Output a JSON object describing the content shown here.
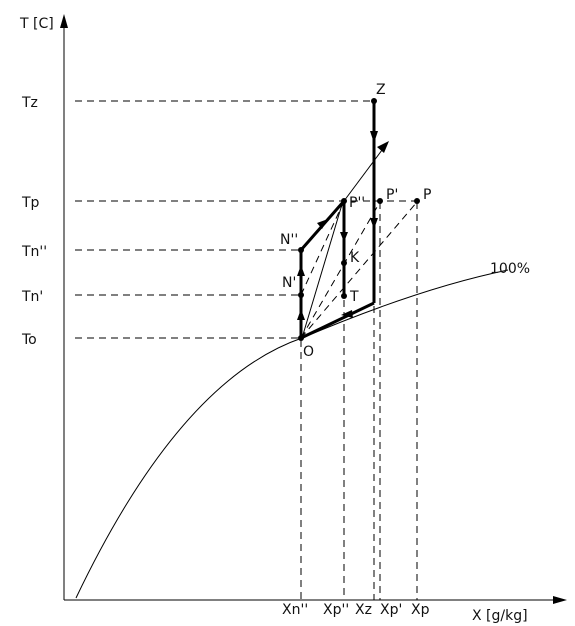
{
  "axes": {
    "y_label": "T [C]",
    "x_label": "X [g/kg]"
  },
  "y_ticks": {
    "tz": "Tz",
    "tp": "Tp",
    "tn2": "Tn''",
    "tn1": "Tn'",
    "to": "To"
  },
  "x_ticks": {
    "xn2": "Xn''",
    "xp2": "Xp''",
    "xz": "Xz",
    "xp1": "Xp'",
    "xp": "Xp"
  },
  "points": {
    "z": "Z",
    "p2": "P''",
    "p1": "P'",
    "p": "P",
    "n2": "N''",
    "n1": "N'",
    "k": "K",
    "t": "T",
    "o": "O"
  },
  "curve_label": "100%"
}
